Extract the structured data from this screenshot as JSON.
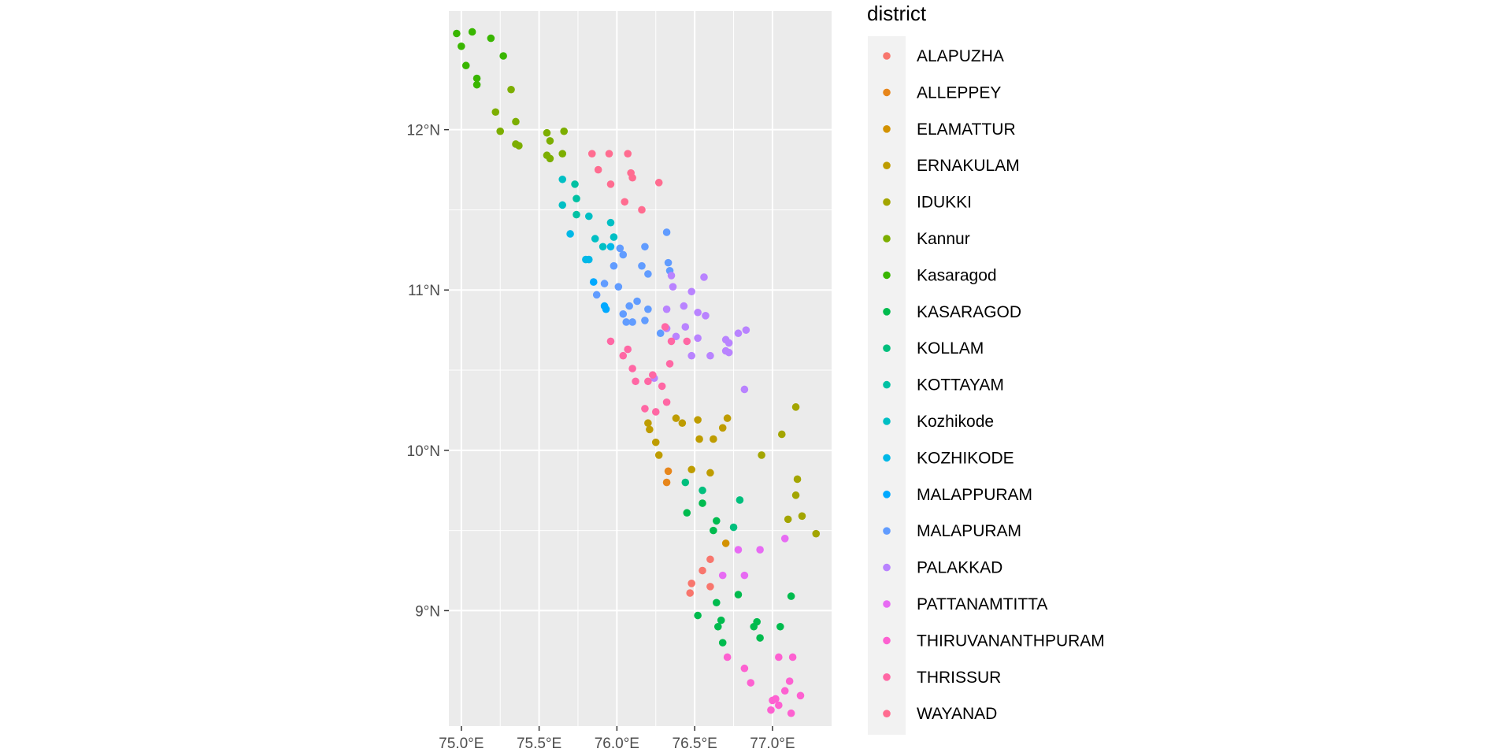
{
  "chart_data": {
    "type": "scatter",
    "title": "",
    "xlabel": "",
    "ylabel": "",
    "xlim": [
      74.92,
      77.38
    ],
    "ylim": [
      8.28,
      12.74
    ],
    "x_ticks": [
      {
        "value": 75.0,
        "label": "75.0°E"
      },
      {
        "value": 75.5,
        "label": "75.5°E"
      },
      {
        "value": 76.0,
        "label": "76.0°E"
      },
      {
        "value": 76.5,
        "label": "76.5°E"
      },
      {
        "value": 77.0,
        "label": "77.0°E"
      }
    ],
    "y_ticks": [
      {
        "value": 9,
        "label": "9°N"
      },
      {
        "value": 10,
        "label": "10°N"
      },
      {
        "value": 11,
        "label": "11°N"
      },
      {
        "value": 12,
        "label": "12°N"
      }
    ],
    "grid": true,
    "panel_background": "#ebebeb",
    "legend": {
      "title": "district",
      "position": "right"
    },
    "series": [
      {
        "name": "ALAPUZHA",
        "color": "#F8766D",
        "points": [
          [
            76.6,
            9.32
          ],
          [
            76.55,
            9.25
          ],
          [
            76.6,
            9.15
          ],
          [
            76.48,
            9.17
          ],
          [
            76.47,
            9.11
          ]
        ]
      },
      {
        "name": "ALLEPPEY",
        "color": "#E7861B",
        "points": [
          [
            76.33,
            9.87
          ],
          [
            76.32,
            9.8
          ]
        ]
      },
      {
        "name": "ELAMATTUR",
        "color": "#D39200",
        "points": [
          [
            76.7,
            9.42
          ]
        ]
      },
      {
        "name": "ERNAKULAM",
        "color": "#BE9C00",
        "points": [
          [
            76.2,
            10.17
          ],
          [
            76.21,
            10.13
          ],
          [
            76.38,
            10.2
          ],
          [
            76.42,
            10.17
          ],
          [
            76.52,
            10.19
          ],
          [
            76.53,
            10.07
          ],
          [
            76.62,
            10.07
          ],
          [
            76.68,
            10.14
          ],
          [
            76.71,
            10.2
          ],
          [
            76.25,
            10.05
          ],
          [
            76.27,
            9.97
          ],
          [
            76.48,
            9.88
          ],
          [
            76.6,
            9.86
          ]
        ]
      },
      {
        "name": "IDUKKI",
        "color": "#A3A500",
        "points": [
          [
            77.15,
            10.27
          ],
          [
            77.06,
            10.1
          ],
          [
            76.93,
            9.97
          ],
          [
            77.16,
            9.82
          ],
          [
            77.15,
            9.72
          ],
          [
            77.19,
            9.59
          ],
          [
            77.1,
            9.57
          ],
          [
            77.28,
            9.48
          ]
        ]
      },
      {
        "name": "Kannur",
        "color": "#7CAE00",
        "points": [
          [
            75.32,
            12.25
          ],
          [
            75.22,
            12.11
          ],
          [
            75.35,
            12.05
          ],
          [
            75.25,
            11.99
          ],
          [
            75.55,
            11.98
          ],
          [
            75.66,
            11.99
          ],
          [
            75.57,
            11.93
          ],
          [
            75.35,
            11.91
          ],
          [
            75.37,
            11.9
          ],
          [
            75.65,
            11.85
          ],
          [
            75.55,
            11.84
          ],
          [
            75.57,
            11.82
          ]
        ]
      },
      {
        "name": "Kasaragod",
        "color": "#39B600",
        "points": [
          [
            74.97,
            12.6
          ],
          [
            75.07,
            12.61
          ],
          [
            75.19,
            12.57
          ],
          [
            75.0,
            12.52
          ],
          [
            75.27,
            12.46
          ],
          [
            75.03,
            12.4
          ],
          [
            75.1,
            12.32
          ],
          [
            75.1,
            12.28
          ]
        ]
      },
      {
        "name": "KASARAGOD",
        "color": "#00BB4E",
        "points": [
          [
            76.64,
            9.56
          ],
          [
            76.62,
            9.5
          ],
          [
            76.55,
            9.67
          ],
          [
            76.45,
            9.61
          ],
          [
            76.64,
            9.05
          ],
          [
            76.52,
            8.97
          ],
          [
            76.67,
            8.94
          ],
          [
            76.65,
            8.9
          ],
          [
            76.78,
            9.1
          ],
          [
            76.9,
            8.93
          ],
          [
            76.88,
            8.9
          ],
          [
            77.05,
            8.9
          ],
          [
            76.68,
            8.8
          ],
          [
            76.92,
            8.83
          ],
          [
            77.12,
            9.09
          ]
        ]
      },
      {
        "name": "KOLLAM",
        "color": "#00BF7D",
        "points": [
          [
            76.44,
            9.8
          ],
          [
            76.55,
            9.75
          ],
          [
            76.75,
            9.52
          ],
          [
            76.79,
            9.69
          ]
        ]
      },
      {
        "name": "KOTTAYAM",
        "color": "#00C1A3",
        "points": [
          [
            75.73,
            11.66
          ],
          [
            75.74,
            11.57
          ],
          [
            75.74,
            11.47
          ]
        ]
      },
      {
        "name": "Kozhikode",
        "color": "#00BFC4",
        "points": [
          [
            75.65,
            11.69
          ],
          [
            75.65,
            11.53
          ],
          [
            75.82,
            11.46
          ],
          [
            75.86,
            11.32
          ],
          [
            75.96,
            11.42
          ],
          [
            75.91,
            11.27
          ],
          [
            75.98,
            11.33
          ]
        ]
      },
      {
        "name": "KOZHIKODE",
        "color": "#00B8E7",
        "points": [
          [
            75.7,
            11.35
          ],
          [
            75.8,
            11.19
          ],
          [
            75.82,
            11.19
          ],
          [
            75.96,
            11.27
          ]
        ]
      },
      {
        "name": "MALAPPURAM",
        "color": "#00A9FF",
        "points": [
          [
            75.85,
            11.05
          ],
          [
            75.92,
            10.9
          ],
          [
            75.93,
            10.88
          ]
        ]
      },
      {
        "name": "MALAPURAM",
        "color": "#619CFF",
        "points": [
          [
            76.02,
            11.26
          ],
          [
            76.04,
            11.22
          ],
          [
            76.32,
            11.36
          ],
          [
            76.18,
            11.27
          ],
          [
            76.33,
            11.17
          ],
          [
            76.34,
            11.12
          ],
          [
            76.2,
            11.1
          ],
          [
            76.16,
            11.15
          ],
          [
            75.98,
            11.15
          ],
          [
            75.87,
            10.97
          ],
          [
            75.92,
            11.04
          ],
          [
            76.01,
            11.02
          ],
          [
            76.08,
            10.9
          ],
          [
            76.13,
            10.93
          ],
          [
            76.2,
            10.88
          ],
          [
            76.04,
            10.85
          ],
          [
            76.06,
            10.8
          ],
          [
            76.1,
            10.8
          ],
          [
            76.18,
            10.81
          ],
          [
            76.28,
            10.73
          ]
        ]
      },
      {
        "name": "PALAKKAD",
        "color": "#B983FF",
        "points": [
          [
            76.56,
            11.08
          ],
          [
            76.48,
            10.99
          ],
          [
            76.35,
            11.09
          ],
          [
            76.36,
            11.02
          ],
          [
            76.32,
            10.88
          ],
          [
            76.43,
            10.9
          ],
          [
            76.52,
            10.86
          ],
          [
            76.57,
            10.84
          ],
          [
            76.44,
            10.77
          ],
          [
            76.52,
            10.7
          ],
          [
            76.32,
            10.76
          ],
          [
            76.38,
            10.71
          ],
          [
            76.7,
            10.69
          ],
          [
            76.72,
            10.67
          ],
          [
            76.7,
            10.62
          ],
          [
            76.72,
            10.61
          ],
          [
            76.6,
            10.59
          ],
          [
            76.48,
            10.59
          ],
          [
            76.78,
            10.73
          ],
          [
            76.83,
            10.75
          ],
          [
            76.82,
            10.38
          ],
          [
            76.24,
            10.45
          ]
        ]
      },
      {
        "name": "PATTANAMTITTA",
        "color": "#E76BF3",
        "points": [
          [
            76.78,
            9.38
          ],
          [
            76.92,
            9.38
          ],
          [
            77.08,
            9.45
          ],
          [
            76.68,
            9.22
          ],
          [
            76.82,
            9.22
          ]
        ]
      },
      {
        "name": "THIRUVANANTHPURAM",
        "color": "#FD61D1",
        "points": [
          [
            76.71,
            8.71
          ],
          [
            76.82,
            8.64
          ],
          [
            76.86,
            8.55
          ],
          [
            77.04,
            8.71
          ],
          [
            77.13,
            8.71
          ],
          [
            77.11,
            8.56
          ],
          [
            77.08,
            8.5
          ],
          [
            77.18,
            8.47
          ],
          [
            77.02,
            8.45
          ],
          [
            77.0,
            8.44
          ],
          [
            77.04,
            8.41
          ],
          [
            76.99,
            8.38
          ],
          [
            77.12,
            8.36
          ]
        ]
      },
      {
        "name": "THRISSUR",
        "color": "#FF67A4",
        "points": [
          [
            75.96,
            10.68
          ],
          [
            76.04,
            10.59
          ],
          [
            76.07,
            10.63
          ],
          [
            76.1,
            10.51
          ],
          [
            76.23,
            10.47
          ],
          [
            76.34,
            10.54
          ],
          [
            76.12,
            10.43
          ],
          [
            76.2,
            10.43
          ],
          [
            76.29,
            10.4
          ],
          [
            76.32,
            10.3
          ],
          [
            76.18,
            10.26
          ],
          [
            76.25,
            10.24
          ],
          [
            76.35,
            10.68
          ],
          [
            76.31,
            10.77
          ],
          [
            76.45,
            10.68
          ]
        ]
      },
      {
        "name": "WAYANAD",
        "color": "#FF6C90",
        "points": [
          [
            75.84,
            11.85
          ],
          [
            75.95,
            11.85
          ],
          [
            76.07,
            11.85
          ],
          [
            76.09,
            11.73
          ],
          [
            76.1,
            11.7
          ],
          [
            76.27,
            11.67
          ],
          [
            75.88,
            11.75
          ],
          [
            75.96,
            11.66
          ],
          [
            76.05,
            11.55
          ],
          [
            76.16,
            11.5
          ]
        ]
      }
    ]
  }
}
